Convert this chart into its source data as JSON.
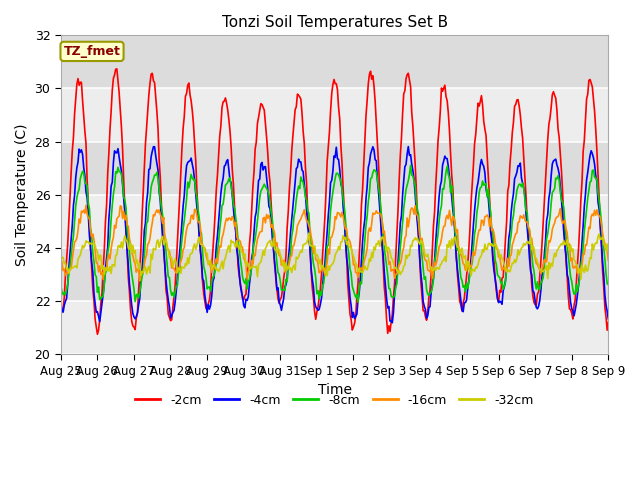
{
  "title": "Tonzi Soil Temperatures Set B",
  "xlabel": "Time",
  "ylabel": "Soil Temperature (C)",
  "ylim": [
    20,
    32
  ],
  "yticks": [
    20,
    22,
    24,
    26,
    28,
    30,
    32
  ],
  "annotation_text": "TZ_fmet",
  "annotation_color": "#8B0000",
  "annotation_bg": "#FFFFCC",
  "annotation_edge": "#999900",
  "plot_bg_color": "#DCDCDC",
  "fig_bg_color": "#FFFFFF",
  "series": [
    {
      "label": "-2cm",
      "color": "#FF0000",
      "amplitude": 4.3,
      "mean": 25.8,
      "phase": 0.0,
      "amp_mod": 0.6
    },
    {
      "label": "-4cm",
      "color": "#0000FF",
      "amplitude": 2.9,
      "mean": 24.5,
      "phase": 0.25,
      "amp_mod": 0.3
    },
    {
      "label": "-8cm",
      "color": "#00CC00",
      "amplitude": 2.2,
      "mean": 24.5,
      "phase": 0.55,
      "amp_mod": 0.25
    },
    {
      "label": "-16cm",
      "color": "#FF8C00",
      "amplitude": 1.1,
      "mean": 24.2,
      "phase": 0.95,
      "amp_mod": 0.15
    },
    {
      "label": "-32cm",
      "color": "#CCCC00",
      "amplitude": 0.55,
      "mean": 23.7,
      "phase": 1.7,
      "amp_mod": 0.05
    }
  ],
  "xtick_labels": [
    "Aug 25",
    "Aug 26",
    "Aug 27",
    "Aug 28",
    "Aug 29",
    "Aug 30",
    "Aug 31",
    "Sep 1",
    "Sep 2",
    "Sep 3",
    "Sep 4",
    "Sep 5",
    "Sep 6",
    "Sep 7",
    "Sep 8",
    "Sep 9"
  ],
  "n_points": 480,
  "days": 16,
  "line_width": 1.2,
  "grid_color": "#FFFFFF",
  "grid_alpha": 0.9,
  "figsize": [
    6.4,
    4.8
  ],
  "dpi": 100
}
